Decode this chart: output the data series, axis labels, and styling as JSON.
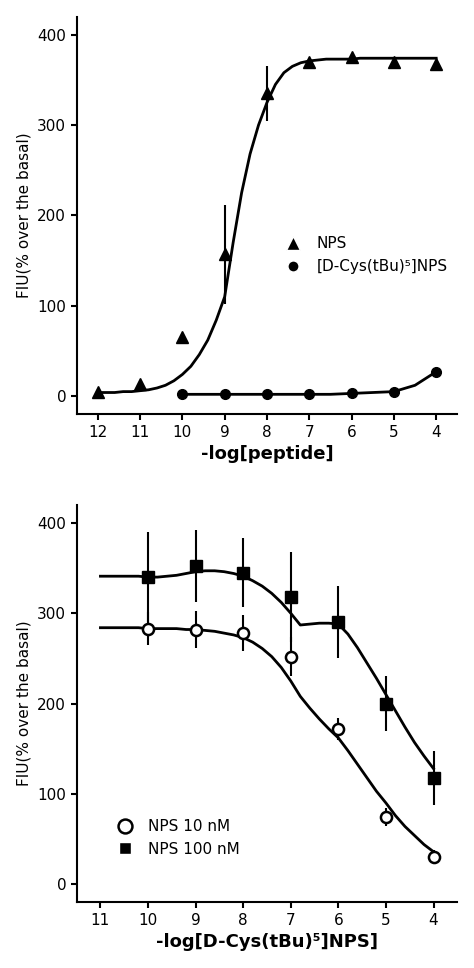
{
  "panel1": {
    "nps_x": [
      -12,
      -11,
      -10,
      -9,
      -8,
      -7,
      -6,
      -5,
      -4
    ],
    "nps_y": [
      5,
      13,
      65,
      157,
      335,
      370,
      375,
      370,
      368
    ],
    "nps_yerr": [
      0,
      0,
      0,
      55,
      30,
      0,
      0,
      0,
      0
    ],
    "dcys_x": [
      -10,
      -9,
      -8,
      -7,
      -6,
      -5,
      -4
    ],
    "dcys_y": [
      2,
      2,
      2,
      2,
      3,
      5,
      27
    ],
    "dcys_yerr": [
      0,
      0,
      0,
      0,
      0,
      0,
      0
    ],
    "nps_fit_x_dense": [
      -12,
      -11.8,
      -11.6,
      -11.4,
      -11.2,
      -11,
      -10.8,
      -10.6,
      -10.4,
      -10.2,
      -10,
      -9.8,
      -9.6,
      -9.4,
      -9.2,
      -9,
      -8.8,
      -8.6,
      -8.4,
      -8.2,
      -8,
      -7.8,
      -7.6,
      -7.4,
      -7.2,
      -7,
      -6.8,
      -6.6,
      -6.4,
      -6.2,
      -6,
      -5.8,
      -5.6,
      -5.4,
      -5.2,
      -5,
      -4.8,
      -4.6,
      -4.4,
      -4.2,
      -4
    ],
    "nps_fit_y_dense": [
      4,
      4,
      4,
      5,
      5,
      6,
      7,
      9,
      12,
      17,
      24,
      33,
      46,
      62,
      84,
      110,
      170,
      225,
      268,
      300,
      325,
      345,
      358,
      365,
      369,
      371,
      372,
      373,
      373,
      373,
      373,
      374,
      374,
      374,
      374,
      374,
      374,
      374,
      374,
      374,
      374
    ],
    "dcys_fit_x_dense": [
      -10,
      -9.5,
      -9,
      -8.5,
      -8,
      -7.5,
      -7,
      -6.5,
      -6,
      -5.5,
      -5,
      -4.5,
      -4
    ],
    "dcys_fit_y_dense": [
      2,
      2,
      2,
      2,
      2,
      2,
      2,
      2,
      3,
      4,
      5,
      12,
      27
    ],
    "xlabel": "-log[peptide]",
    "ylabel": "FIU(% over the basal)",
    "xlim": [
      -12.5,
      -3.5
    ],
    "ylim": [
      -20,
      420
    ],
    "xticks": [
      -12,
      -11,
      -10,
      -9,
      -8,
      -7,
      -6,
      -5,
      -4
    ],
    "xticklabels": [
      "12",
      "11",
      "10",
      "9",
      "8",
      "7",
      "6",
      "5",
      "4"
    ],
    "yticks": [
      0,
      100,
      200,
      300,
      400
    ],
    "legend_nps": "NPS",
    "legend_dcys": "[D-Cys(tBu)⁵]NPS"
  },
  "panel2": {
    "nps10_x": [
      -10,
      -9,
      -8,
      -7,
      -6,
      -5,
      -4
    ],
    "nps10_y": [
      283,
      282,
      278,
      252,
      172,
      74,
      30
    ],
    "nps10_yerr": [
      18,
      20,
      20,
      22,
      12,
      10,
      8
    ],
    "nps100_x": [
      -10,
      -9,
      -8,
      -7,
      -6,
      -5,
      -4
    ],
    "nps100_y": [
      340,
      352,
      345,
      318,
      290,
      200,
      118
    ],
    "nps100_yerr": [
      50,
      40,
      38,
      50,
      40,
      30,
      30
    ],
    "nps10_fit_x_dense": [
      -11,
      -10.8,
      -10.6,
      -10.4,
      -10.2,
      -10,
      -9.8,
      -9.6,
      -9.4,
      -9.2,
      -9,
      -8.8,
      -8.6,
      -8.4,
      -8.2,
      -8,
      -7.8,
      -7.6,
      -7.4,
      -7.2,
      -7,
      -6.8,
      -6.6,
      -6.4,
      -6.2,
      -6,
      -5.8,
      -5.6,
      -5.4,
      -5.2,
      -5,
      -4.8,
      -4.6,
      -4.4,
      -4.2,
      -4
    ],
    "nps10_fit_y_dense": [
      284,
      284,
      284,
      284,
      284,
      283,
      283,
      283,
      283,
      282,
      282,
      281,
      280,
      278,
      276,
      273,
      268,
      261,
      252,
      240,
      225,
      208,
      195,
      183,
      172,
      162,
      148,
      133,
      118,
      103,
      90,
      76,
      64,
      54,
      44,
      36
    ],
    "nps100_fit_x_dense": [
      -11,
      -10.8,
      -10.6,
      -10.4,
      -10.2,
      -10,
      -9.8,
      -9.6,
      -9.4,
      -9.2,
      -9,
      -8.8,
      -8.6,
      -8.4,
      -8.2,
      -8,
      -7.8,
      -7.6,
      -7.4,
      -7.2,
      -7,
      -6.8,
      -6.6,
      -6.4,
      -6.2,
      -6,
      -5.8,
      -5.6,
      -5.4,
      -5.2,
      -5,
      -4.8,
      -4.6,
      -4.4,
      -4.2,
      -4
    ],
    "nps100_fit_y_dense": [
      341,
      341,
      341,
      341,
      341,
      340,
      340,
      341,
      342,
      344,
      346,
      347,
      347,
      346,
      344,
      341,
      336,
      330,
      322,
      312,
      300,
      287,
      288,
      289,
      289,
      288,
      277,
      262,
      245,
      228,
      210,
      192,
      174,
      157,
      142,
      128
    ],
    "xlabel": "-log[D-Cys(tBu)⁵]NPS]",
    "ylabel": "FIU(% over the basal)",
    "xlim": [
      -11.5,
      -3.5
    ],
    "ylim": [
      -20,
      420
    ],
    "xticks": [
      -11,
      -10,
      -9,
      -8,
      -7,
      -6,
      -5,
      -4
    ],
    "xticklabels": [
      "11",
      "10",
      "9",
      "8",
      "7",
      "6",
      "5",
      "4"
    ],
    "yticks": [
      0,
      100,
      200,
      300,
      400
    ],
    "legend_nps10": "NPS 10 nM",
    "legend_nps100": "NPS 100 nM"
  },
  "fig_width": 4.74,
  "fig_height": 9.68,
  "linecolor": "#000000",
  "markercolor": "#000000"
}
